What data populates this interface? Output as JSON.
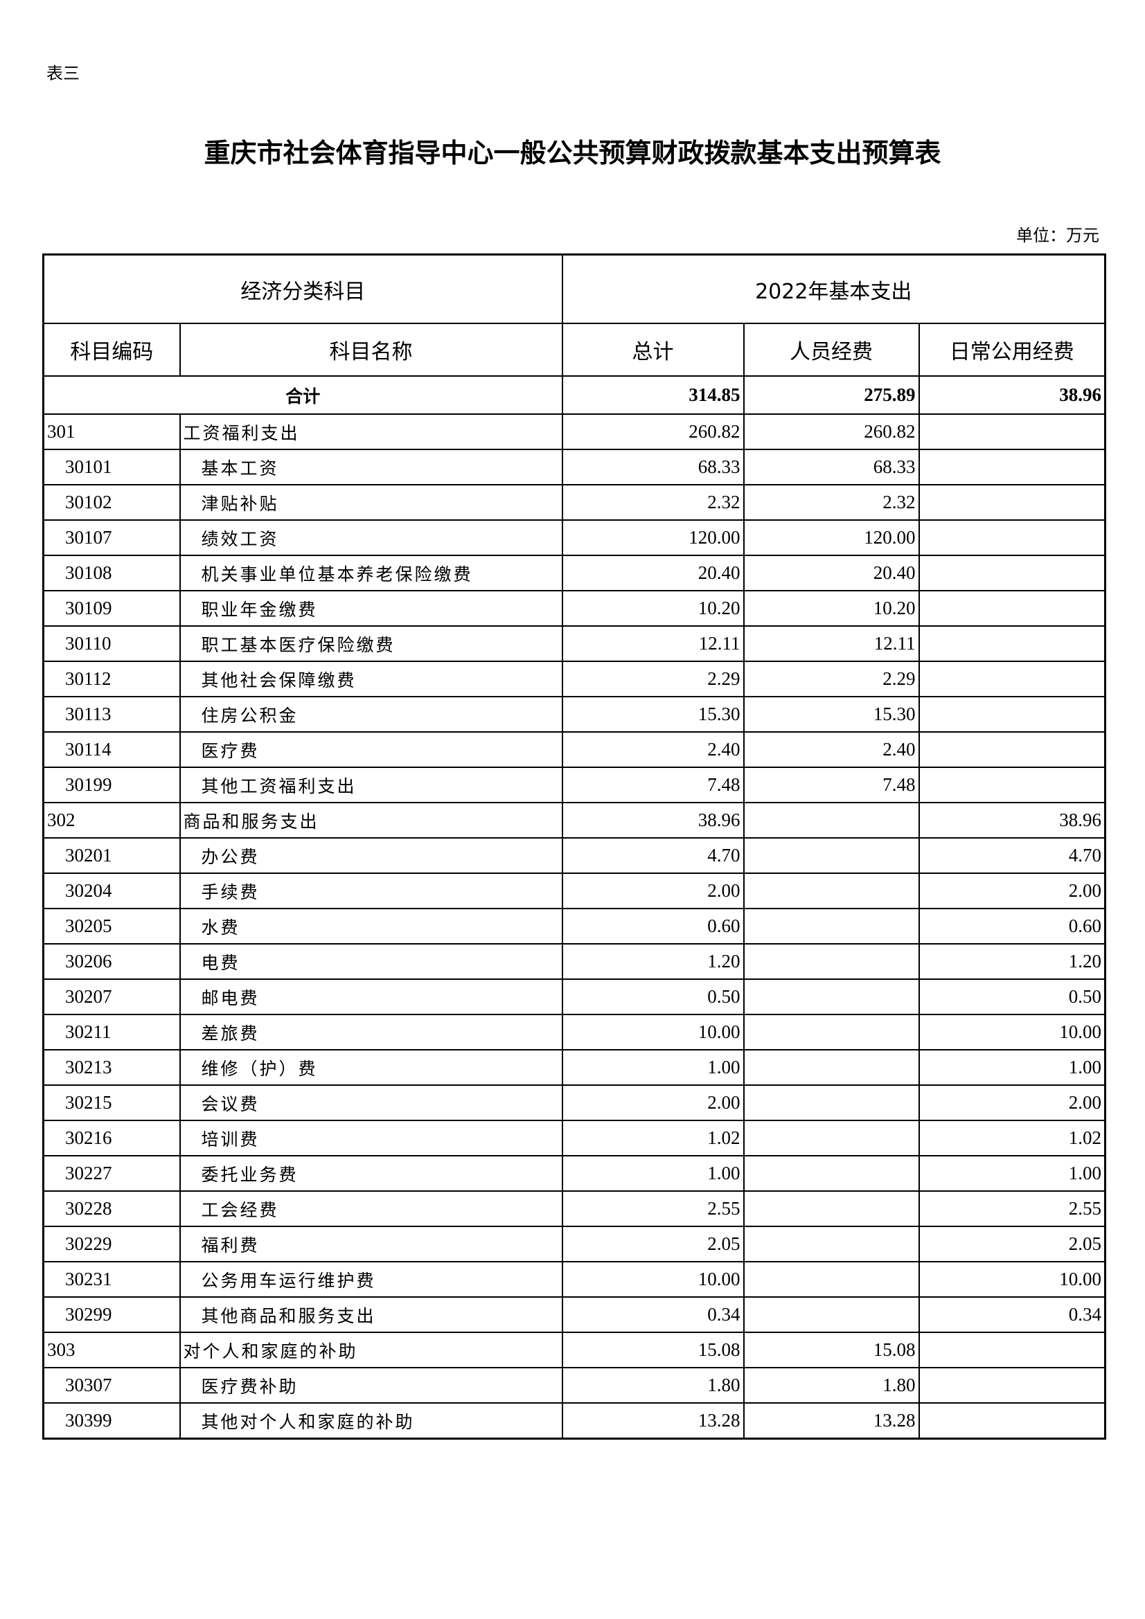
{
  "label": "表三",
  "title": "重庆市社会体育指导中心一般公共预算财政拨款基本支出预算表",
  "unit": "单位：万元",
  "header": {
    "group_left": "经济分类科目",
    "group_right": "2022年基本支出",
    "columns": [
      "科目编码",
      "科目名称",
      "总计",
      "人员经费",
      "日常公用经费"
    ]
  },
  "total": {
    "label": "合计",
    "total": "314.85",
    "personnel": "275.89",
    "public": "38.96"
  },
  "rows": [
    {
      "code": "301",
      "name": "工资福利支出",
      "total": "260.82",
      "personnel": "260.82",
      "public": "",
      "level": 1
    },
    {
      "code": "30101",
      "name": "基本工资",
      "total": "68.33",
      "personnel": "68.33",
      "public": "",
      "level": 2
    },
    {
      "code": "30102",
      "name": "津贴补贴",
      "total": "2.32",
      "personnel": "2.32",
      "public": "",
      "level": 2
    },
    {
      "code": "30107",
      "name": "绩效工资",
      "total": "120.00",
      "personnel": "120.00",
      "public": "",
      "level": 2
    },
    {
      "code": "30108",
      "name": "机关事业单位基本养老保险缴费",
      "total": "20.40",
      "personnel": "20.40",
      "public": "",
      "level": 2
    },
    {
      "code": "30109",
      "name": "职业年金缴费",
      "total": "10.20",
      "personnel": "10.20",
      "public": "",
      "level": 2
    },
    {
      "code": "30110",
      "name": "职工基本医疗保险缴费",
      "total": "12.11",
      "personnel": "12.11",
      "public": "",
      "level": 2
    },
    {
      "code": "30112",
      "name": "其他社会保障缴费",
      "total": "2.29",
      "personnel": "2.29",
      "public": "",
      "level": 2
    },
    {
      "code": "30113",
      "name": "住房公积金",
      "total": "15.30",
      "personnel": "15.30",
      "public": "",
      "level": 2
    },
    {
      "code": "30114",
      "name": "医疗费",
      "total": "2.40",
      "personnel": "2.40",
      "public": "",
      "level": 2
    },
    {
      "code": "30199",
      "name": "其他工资福利支出",
      "total": "7.48",
      "personnel": "7.48",
      "public": "",
      "level": 2
    },
    {
      "code": "302",
      "name": "商品和服务支出",
      "total": "38.96",
      "personnel": "",
      "public": "38.96",
      "level": 1
    },
    {
      "code": "30201",
      "name": "办公费",
      "total": "4.70",
      "personnel": "",
      "public": "4.70",
      "level": 2
    },
    {
      "code": "30204",
      "name": "手续费",
      "total": "2.00",
      "personnel": "",
      "public": "2.00",
      "level": 2
    },
    {
      "code": "30205",
      "name": "水费",
      "total": "0.60",
      "personnel": "",
      "public": "0.60",
      "level": 2
    },
    {
      "code": "30206",
      "name": "电费",
      "total": "1.20",
      "personnel": "",
      "public": "1.20",
      "level": 2
    },
    {
      "code": "30207",
      "name": "邮电费",
      "total": "0.50",
      "personnel": "",
      "public": "0.50",
      "level": 2
    },
    {
      "code": "30211",
      "name": "差旅费",
      "total": "10.00",
      "personnel": "",
      "public": "10.00",
      "level": 2
    },
    {
      "code": "30213",
      "name": "维修（护）费",
      "total": "1.00",
      "personnel": "",
      "public": "1.00",
      "level": 2
    },
    {
      "code": "30215",
      "name": "会议费",
      "total": "2.00",
      "personnel": "",
      "public": "2.00",
      "level": 2
    },
    {
      "code": "30216",
      "name": "培训费",
      "total": "1.02",
      "personnel": "",
      "public": "1.02",
      "level": 2
    },
    {
      "code": "30227",
      "name": "委托业务费",
      "total": "1.00",
      "personnel": "",
      "public": "1.00",
      "level": 2
    },
    {
      "code": "30228",
      "name": "工会经费",
      "total": "2.55",
      "personnel": "",
      "public": "2.55",
      "level": 2
    },
    {
      "code": "30229",
      "name": "福利费",
      "total": "2.05",
      "personnel": "",
      "public": "2.05",
      "level": 2
    },
    {
      "code": "30231",
      "name": "公务用车运行维护费",
      "total": "10.00",
      "personnel": "",
      "public": "10.00",
      "level": 2
    },
    {
      "code": "30299",
      "name": "其他商品和服务支出",
      "total": "0.34",
      "personnel": "",
      "public": "0.34",
      "level": 2
    },
    {
      "code": "303",
      "name": "对个人和家庭的补助",
      "total": "15.08",
      "personnel": "15.08",
      "public": "",
      "level": 1
    },
    {
      "code": "30307",
      "name": "医疗费补助",
      "total": "1.80",
      "personnel": "1.80",
      "public": "",
      "level": 2
    },
    {
      "code": "30399",
      "name": "其他对个人和家庭的补助",
      "total": "13.28",
      "personnel": "13.28",
      "public": "",
      "level": 2
    }
  ]
}
